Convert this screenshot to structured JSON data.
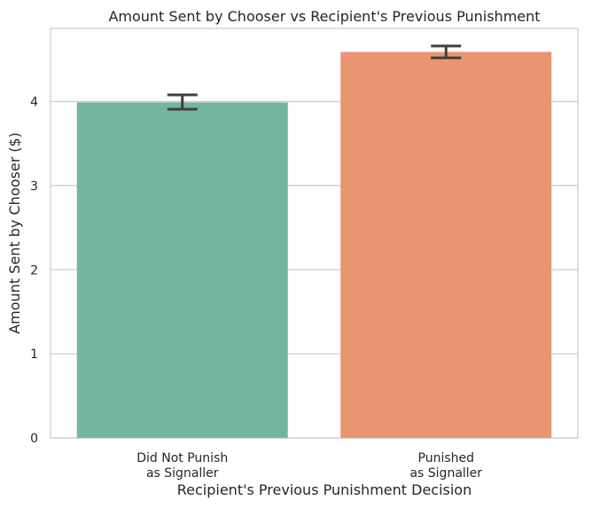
{
  "chart_data": {
    "type": "bar",
    "title": "Amount Sent by Chooser vs Recipient's Previous Punishment",
    "xlabel": "Recipient's Previous Punishment Decision",
    "ylabel": "Amount Sent by Chooser ($)",
    "categories": [
      [
        "Did Not Punish",
        "as Signaller"
      ],
      [
        "Punished",
        "as Signaller"
      ]
    ],
    "values": [
      3.99,
      4.59
    ],
    "error_bars": [
      {
        "low": 3.91,
        "high": 4.08
      },
      {
        "low": 4.52,
        "high": 4.66
      }
    ],
    "colors": [
      "#73b6a0",
      "#e99673"
    ],
    "ylim": [
      0,
      4.87
    ],
    "yticks": [
      0,
      1,
      2,
      3,
      4
    ],
    "grid": "horizontal",
    "legend": "none"
  }
}
